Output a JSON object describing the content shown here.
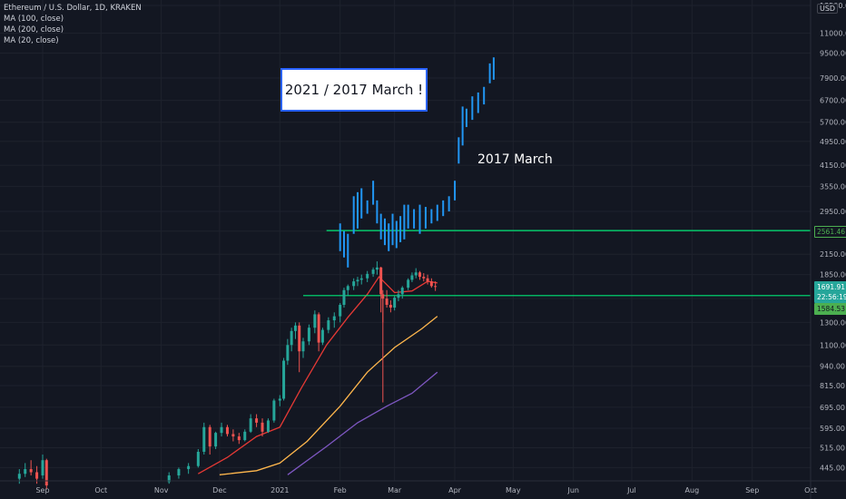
{
  "legend": {
    "symbol": "Ethereum / U.S. Dollar, 1D, KRAKEN",
    "ma100": "MA (100, close)",
    "ma200": "MA (200, close)",
    "ma20": "MA (20, close)"
  },
  "currency": "USD",
  "annotation_box": "2021  /  2017 March !",
  "annotation_text": "2017 March",
  "price_tags": [
    {
      "label": "2561.46",
      "bg": "#131722",
      "fg": "#4caf50",
      "border": "#4caf50"
    },
    {
      "label": "1691.91",
      "bg": "#26a69a",
      "fg": "#ffffff",
      "border": "#26a69a"
    },
    {
      "label": "22:56:19",
      "bg": "#26a69a",
      "fg": "#ffffff",
      "border": "#26a69a"
    },
    {
      "label": "1584.53",
      "bg": "#4caf50",
      "fg": "#131722",
      "border": "#4caf50"
    }
  ],
  "colors": {
    "background": "#131722",
    "grid": "#1e222d",
    "axis_text": "#b2b5be",
    "candle_up": "#26a69a",
    "candle_down": "#ef5350",
    "projection": "#2196f3",
    "ma20": "#e53935",
    "ma100": "#ffb74d",
    "ma200": "#7e57c2",
    "support_line": "#00e676"
  },
  "chart_data": {
    "type": "candlestick",
    "y_scale": "log",
    "ylim": [
      420,
      13500
    ],
    "yticks": [
      "445.00",
      "515.00",
      "595.00",
      "695.00",
      "815.00",
      "940.00",
      "1100.00",
      "1300.00",
      "1550.00",
      "1850.00",
      "2150.00",
      "2550.00",
      "2950.00",
      "3550.00",
      "4150.00",
      "4950.00",
      "5700.00",
      "6700.00",
      "7900.00",
      "9500.00",
      "11000.00",
      "13500.00"
    ],
    "xticks": [
      "Sep",
      "Oct",
      "Nov",
      "Dec",
      "2021",
      "Feb",
      "Mar",
      "Apr",
      "May",
      "Jun",
      "Jul",
      "Aug",
      "Sep",
      "Oct"
    ],
    "xtick_dates": [
      "2020-09-01",
      "2020-10-01",
      "2020-11-01",
      "2020-12-01",
      "2021-01-01",
      "2021-02-01",
      "2021-03-01",
      "2021-04-01",
      "2021-05-01",
      "2021-06-01",
      "2021-07-01",
      "2021-08-01",
      "2021-09-01",
      "2021-10-01"
    ],
    "candles": [
      [
        "2020-08-20",
        410,
        440,
        395,
        425
      ],
      [
        "2020-08-23",
        425,
        460,
        415,
        440
      ],
      [
        "2020-08-26",
        440,
        470,
        420,
        430
      ],
      [
        "2020-08-29",
        430,
        450,
        395,
        410
      ],
      [
        "2020-09-01",
        420,
        490,
        410,
        470
      ],
      [
        "2020-09-03",
        470,
        475,
        380,
        390
      ],
      [
        "2020-11-05",
        400,
        430,
        395,
        420
      ],
      [
        "2020-11-10",
        420,
        445,
        410,
        440
      ],
      [
        "2020-11-15",
        440,
        460,
        425,
        450
      ],
      [
        "2020-11-20",
        450,
        510,
        445,
        500
      ],
      [
        "2020-11-23",
        500,
        620,
        490,
        600
      ],
      [
        "2020-11-26",
        600,
        610,
        490,
        520
      ],
      [
        "2020-11-29",
        520,
        580,
        510,
        575
      ],
      [
        "2020-12-02",
        575,
        620,
        560,
        600
      ],
      [
        "2020-12-05",
        600,
        610,
        560,
        570
      ],
      [
        "2020-12-08",
        570,
        590,
        540,
        560
      ],
      [
        "2020-12-11",
        560,
        575,
        530,
        545
      ],
      [
        "2020-12-14",
        545,
        590,
        540,
        580
      ],
      [
        "2020-12-17",
        580,
        660,
        575,
        640
      ],
      [
        "2020-12-20",
        640,
        660,
        600,
        620
      ],
      [
        "2020-12-23",
        620,
        640,
        560,
        580
      ],
      [
        "2020-12-26",
        580,
        640,
        575,
        630
      ],
      [
        "2020-12-29",
        630,
        740,
        620,
        730
      ],
      [
        "2021-01-01",
        730,
        760,
        700,
        740
      ],
      [
        "2021-01-03",
        740,
        1000,
        730,
        980
      ],
      [
        "2021-01-05",
        980,
        1150,
        950,
        1100
      ],
      [
        "2021-01-07",
        1100,
        1250,
        1050,
        1220
      ],
      [
        "2021-01-09",
        1220,
        1300,
        1150,
        1270
      ],
      [
        "2021-01-11",
        1270,
        1300,
        900,
        1050
      ],
      [
        "2021-01-13",
        1050,
        1160,
        1000,
        1130
      ],
      [
        "2021-01-16",
        1130,
        1280,
        1100,
        1250
      ],
      [
        "2021-01-19",
        1250,
        1420,
        1200,
        1380
      ],
      [
        "2021-01-21",
        1380,
        1400,
        1050,
        1120
      ],
      [
        "2021-01-23",
        1120,
        1250,
        1100,
        1230
      ],
      [
        "2021-01-26",
        1230,
        1350,
        1200,
        1320
      ],
      [
        "2021-01-29",
        1320,
        1400,
        1250,
        1360
      ],
      [
        "2021-02-01",
        1360,
        1500,
        1300,
        1480
      ],
      [
        "2021-02-03",
        1480,
        1680,
        1450,
        1650
      ],
      [
        "2021-02-05",
        1650,
        1720,
        1580,
        1700
      ],
      [
        "2021-02-08",
        1700,
        1800,
        1650,
        1760
      ],
      [
        "2021-02-10",
        1760,
        1820,
        1700,
        1780
      ],
      [
        "2021-02-12",
        1780,
        1850,
        1720,
        1800
      ],
      [
        "2021-02-15",
        1800,
        1900,
        1750,
        1860
      ],
      [
        "2021-02-18",
        1860,
        1950,
        1820,
        1920
      ],
      [
        "2021-02-20",
        1920,
        2040,
        1850,
        1950
      ],
      [
        "2021-02-22",
        1950,
        1960,
        1400,
        1600
      ],
      [
        "2021-02-23",
        1600,
        1650,
        1300,
        1550
      ],
      [
        "2021-02-25",
        1550,
        1650,
        1450,
        1480
      ],
      [
        "2021-02-27",
        1480,
        1530,
        1400,
        1450
      ],
      [
        "2021-03-01",
        1450,
        1580,
        1420,
        1560
      ],
      [
        "2021-03-03",
        1560,
        1650,
        1520,
        1600
      ],
      [
        "2021-03-05",
        1600,
        1700,
        1550,
        1680
      ],
      [
        "2021-03-08",
        1680,
        1800,
        1650,
        1780
      ],
      [
        "2021-03-10",
        1780,
        1880,
        1750,
        1840
      ],
      [
        "2021-03-12",
        1840,
        1940,
        1800,
        1880
      ],
      [
        "2021-03-14",
        1880,
        1900,
        1780,
        1820
      ],
      [
        "2021-03-16",
        1820,
        1870,
        1760,
        1800
      ],
      [
        "2021-03-18",
        1800,
        1850,
        1720,
        1760
      ],
      [
        "2021-03-20",
        1760,
        1800,
        1680,
        1700
      ],
      [
        "2021-03-22",
        1700,
        1760,
        1640,
        1691
      ]
    ],
    "projection_bars": [
      [
        "2021-02-01",
        2200,
        2700
      ],
      [
        "2021-02-03",
        2100,
        2550
      ],
      [
        "2021-02-05",
        1950,
        2500
      ],
      [
        "2021-02-08",
        2500,
        3300
      ],
      [
        "2021-02-10",
        2600,
        3400
      ],
      [
        "2021-02-12",
        2800,
        3500
      ],
      [
        "2021-02-15",
        2900,
        3200
      ],
      [
        "2021-02-18",
        3100,
        3700
      ],
      [
        "2021-02-20",
        2700,
        3200
      ],
      [
        "2021-02-22",
        2400,
        2900
      ],
      [
        "2021-02-24",
        2300,
        2800
      ],
      [
        "2021-02-26",
        2200,
        2700
      ],
      [
        "2021-02-28",
        2300,
        2900
      ],
      [
        "2021-03-02",
        2250,
        2750
      ],
      [
        "2021-03-04",
        2350,
        2850
      ],
      [
        "2021-03-06",
        2400,
        3100
      ],
      [
        "2021-03-08",
        2600,
        3100
      ],
      [
        "2021-03-11",
        2600,
        3000
      ],
      [
        "2021-03-14",
        2500,
        3100
      ],
      [
        "2021-03-17",
        2600,
        3050
      ],
      [
        "2021-03-20",
        2700,
        3000
      ],
      [
        "2021-03-23",
        2750,
        3100
      ],
      [
        "2021-03-26",
        2850,
        3200
      ],
      [
        "2021-03-29",
        2950,
        3300
      ],
      [
        "2021-04-01",
        3200,
        3700
      ],
      [
        "2021-04-03",
        4200,
        5100
      ],
      [
        "2021-04-05",
        4800,
        6400
      ],
      [
        "2021-04-07",
        5500,
        6300
      ],
      [
        "2021-04-10",
        5800,
        6900
      ],
      [
        "2021-04-13",
        6100,
        7100
      ],
      [
        "2021-04-16",
        6500,
        7400
      ],
      [
        "2021-04-19",
        7600,
        8800
      ],
      [
        "2021-04-21",
        7800,
        9200
      ]
    ],
    "ma20": [
      [
        "2020-11-20",
        425
      ],
      [
        "2020-12-05",
        480
      ],
      [
        "2020-12-20",
        560
      ],
      [
        "2021-01-01",
        600
      ],
      [
        "2021-01-12",
        800
      ],
      [
        "2021-01-25",
        1100
      ],
      [
        "2021-02-05",
        1350
      ],
      [
        "2021-02-15",
        1600
      ],
      [
        "2021-02-21",
        1820
      ],
      [
        "2021-03-01",
        1620
      ],
      [
        "2021-03-10",
        1640
      ],
      [
        "2021-03-18",
        1760
      ],
      [
        "2021-03-23",
        1740
      ]
    ],
    "ma100": [
      [
        "2020-12-01",
        422
      ],
      [
        "2020-12-20",
        435
      ],
      [
        "2021-01-01",
        460
      ],
      [
        "2021-01-15",
        540
      ],
      [
        "2021-02-01",
        700
      ],
      [
        "2021-02-15",
        900
      ],
      [
        "2021-03-01",
        1080
      ],
      [
        "2021-03-15",
        1240
      ],
      [
        "2021-03-23",
        1360
      ]
    ],
    "ma200": [
      [
        "2021-01-05",
        422
      ],
      [
        "2021-01-25",
        520
      ],
      [
        "2021-02-10",
        620
      ],
      [
        "2021-02-25",
        700
      ],
      [
        "2021-03-10",
        770
      ],
      [
        "2021-03-23",
        900
      ]
    ],
    "support_lines": [
      {
        "price": 2561.46,
        "from": "2021-01-25"
      },
      {
        "price": 1584.53,
        "from": "2021-01-13"
      }
    ],
    "volatility_wick": [
      "2021-02-23",
      1550,
      720
    ]
  }
}
